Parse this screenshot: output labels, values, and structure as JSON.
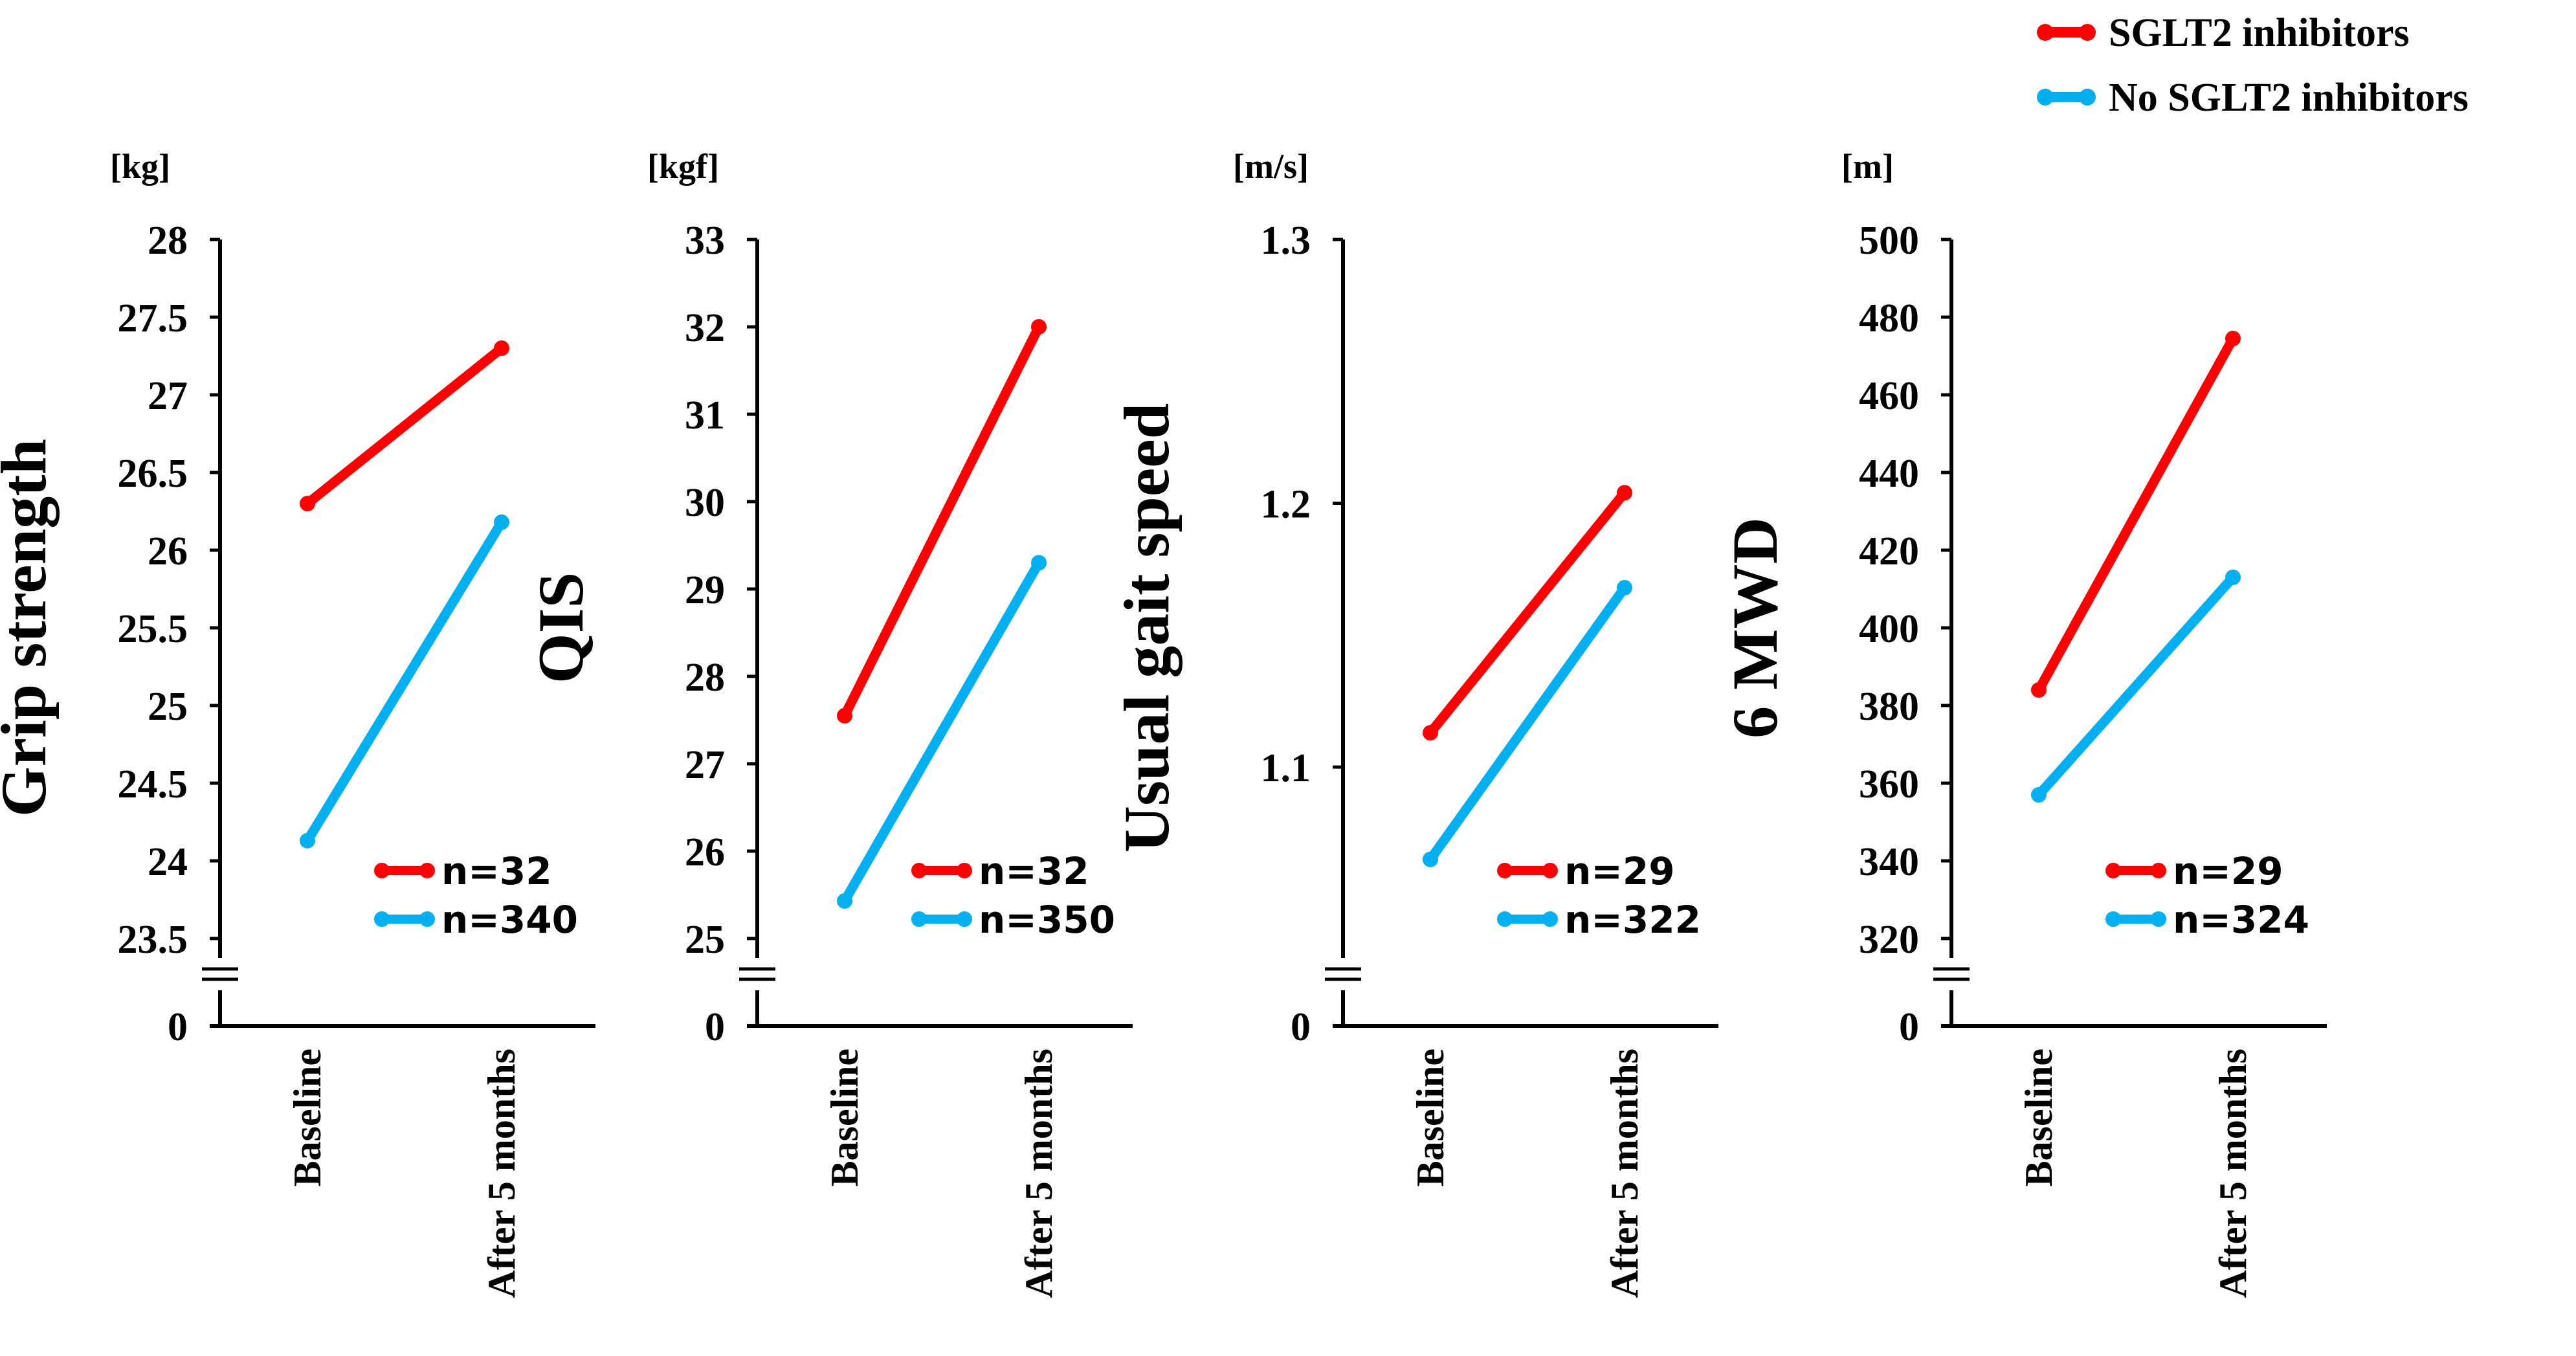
{
  "legend": {
    "items": [
      {
        "label": "SGLT2 inhibitors",
        "color": "#ff0000"
      },
      {
        "label": "No SGLT2 inhibitors",
        "color": "#00b0f0"
      }
    ]
  },
  "chart_data": [
    {
      "type": "line",
      "ylabel": "Grip strength",
      "unit": "[kg]",
      "categories": [
        "Baseline",
        "After 5 months"
      ],
      "ylim": [
        23.5,
        28
      ],
      "yticks": [
        23.5,
        24,
        24.5,
        25,
        25.5,
        26,
        26.5,
        27,
        27.5,
        28
      ],
      "tick_labels": [
        "23.5",
        "24",
        "24.5",
        "25",
        "25.5",
        "26",
        "26.5",
        "27",
        "27.5",
        "28"
      ],
      "break_zero_label": "0",
      "series": [
        {
          "name": "SGLT2 inhibitors",
          "color": "#ff0000",
          "values": [
            26.3,
            27.3
          ],
          "n_label": "n=32"
        },
        {
          "name": "No SGLT2 inhibitors",
          "color": "#00b0f0",
          "values": [
            24.13,
            26.18
          ],
          "n_label": "n=340"
        }
      ]
    },
    {
      "type": "line",
      "ylabel": "QIS",
      "unit": "[kgf]",
      "categories": [
        "Baseline",
        "After 5 months"
      ],
      "ylim": [
        25,
        33
      ],
      "yticks": [
        25,
        26,
        27,
        28,
        29,
        30,
        31,
        32,
        33
      ],
      "tick_labels": [
        "25",
        "26",
        "27",
        "28",
        "29",
        "30",
        "31",
        "32",
        "33"
      ],
      "break_zero_label": "0",
      "series": [
        {
          "name": "SGLT2 inhibitors",
          "color": "#ff0000",
          "values": [
            27.55,
            32.0
          ],
          "n_label": "n=32"
        },
        {
          "name": "No SGLT2 inhibitors",
          "color": "#00b0f0",
          "values": [
            25.43,
            29.3
          ],
          "n_label": "n=350"
        }
      ]
    },
    {
      "type": "line",
      "ylabel": "Usual gait speed",
      "unit": "[m/s]",
      "categories": [
        "Baseline",
        "After 5 months"
      ],
      "ylim": [
        1.035,
        1.3
      ],
      "yticks": [
        1.1,
        1.2,
        1.3
      ],
      "tick_labels": [
        "1.1",
        "1.2",
        "1.3"
      ],
      "break_zero_label": "0",
      "series": [
        {
          "name": "SGLT2 inhibitors",
          "color": "#ff0000",
          "values": [
            1.113,
            1.204
          ],
          "n_label": "n=29"
        },
        {
          "name": "No SGLT2 inhibitors",
          "color": "#00b0f0",
          "values": [
            1.065,
            1.168
          ],
          "n_label": "n=322"
        }
      ]
    },
    {
      "type": "line",
      "ylabel": "6 MWD",
      "unit": "[m]",
      "categories": [
        "Baseline",
        "After 5 months"
      ],
      "ylim": [
        320,
        500
      ],
      "yticks": [
        320,
        340,
        360,
        380,
        400,
        420,
        440,
        460,
        480,
        500
      ],
      "tick_labels": [
        "320",
        "340",
        "360",
        "380",
        "400",
        "420",
        "440",
        "460",
        "480",
        "500"
      ],
      "break_zero_label": "0",
      "series": [
        {
          "name": "SGLT2 inhibitors",
          "color": "#ff0000",
          "values": [
            384,
            474.5
          ],
          "n_label": "n=29"
        },
        {
          "name": "No SGLT2 inhibitors",
          "color": "#00b0f0",
          "values": [
            357,
            413
          ],
          "n_label": "n=324"
        }
      ]
    }
  ]
}
